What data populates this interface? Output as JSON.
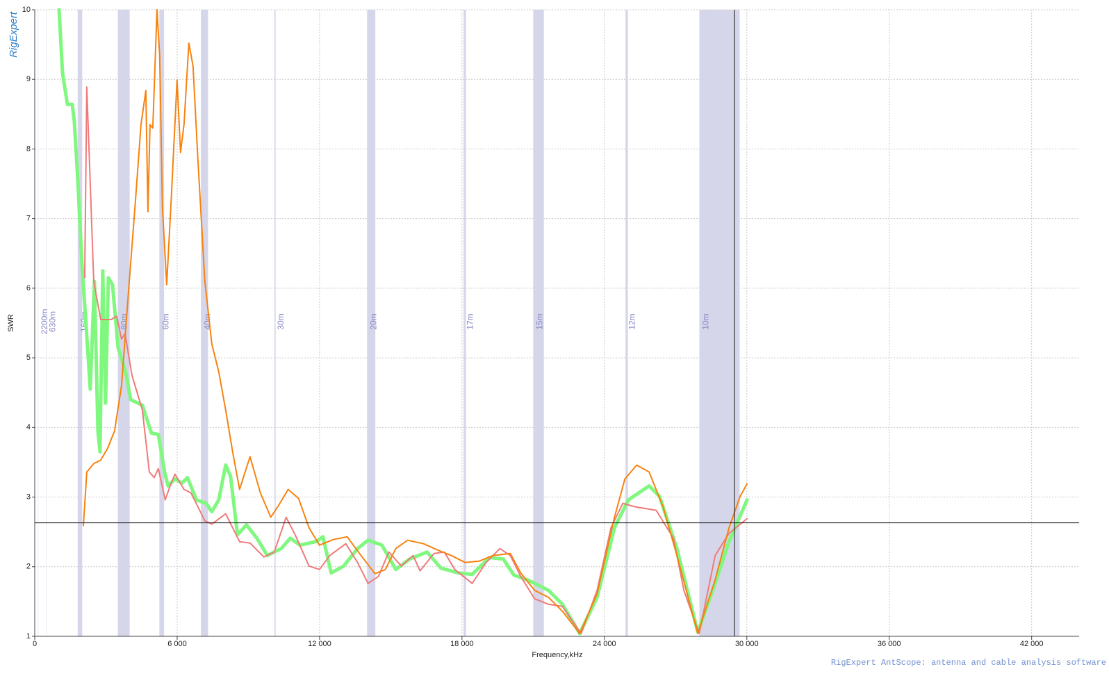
{
  "chart_data": {
    "type": "line",
    "logo": "RigExpert",
    "x_label": "Frequency,kHz",
    "y_label": "SWR",
    "footer": "RigExpert AntScope: antenna and cable analysis software",
    "xlim": [
      0,
      44000
    ],
    "ylim": [
      1,
      10
    ],
    "xticks": [
      0,
      {
        "value": 6000,
        "label": "6 000"
      },
      {
        "value": 12000,
        "label": "12 000"
      },
      {
        "value": 18000,
        "label": "18 000"
      },
      {
        "value": 24000,
        "label": "24 000"
      },
      {
        "value": 30000,
        "label": "30 000"
      },
      {
        "value": 36000,
        "label": "36 000"
      },
      {
        "value": 42000,
        "label": "42 000"
      }
    ],
    "yticks": [
      1,
      2,
      3,
      4,
      5,
      6,
      7,
      8,
      9,
      10
    ],
    "grid": true,
    "band_color": "#d6d6ea",
    "bands": [
      {
        "label": "2200m",
        "start": 135.7,
        "end": 137.8
      },
      {
        "label": "630m",
        "start": 472,
        "end": 479
      },
      {
        "label": "160m",
        "start": 1810,
        "end": 2000
      },
      {
        "label": "80m",
        "start": 3500,
        "end": 4000
      },
      {
        "label": "60m",
        "start": 5250,
        "end": 5450
      },
      {
        "label": "40m",
        "start": 7000,
        "end": 7300
      },
      {
        "label": "30m",
        "start": 10100,
        "end": 10150
      },
      {
        "label": "20m",
        "start": 14000,
        "end": 14350
      },
      {
        "label": "17m",
        "start": 18068,
        "end": 18168
      },
      {
        "label": "15m",
        "start": 21000,
        "end": 21450
      },
      {
        "label": "12m",
        "start": 24890,
        "end": 24990
      },
      {
        "label": "10m",
        "start": 28000,
        "end": 29700
      }
    ],
    "cursor": {
      "x": 29480,
      "y": 2.63
    },
    "series": [
      {
        "color": "#80f880",
        "width": 5,
        "x": [
          1024,
          1170,
          1375,
          1580,
          1667,
          1814,
          1989,
          2165,
          2340,
          2516,
          2662,
          2750,
          2867,
          2984,
          3101,
          3276,
          3510,
          3861,
          4037,
          4534,
          4914,
          5207,
          5470,
          5616,
          5909,
          6201,
          6435,
          6815,
          7225,
          7459,
          7751,
          8044,
          8249,
          8541,
          8921,
          9360,
          9799,
          10384,
          10764,
          11174,
          11846,
          12139,
          12490,
          13016,
          13601,
          14040,
          14625,
          15210,
          15795,
          16526,
          17111,
          17843,
          18428,
          19159,
          19744,
          20183,
          20768,
          21645,
          22230,
          22961,
          23693,
          24424,
          25009,
          25886,
          26325,
          27056,
          27934,
          28665,
          29250,
          30011
        ],
        "values": [
          10,
          9.09,
          8.64,
          8.64,
          8.4,
          7.55,
          6.35,
          5.45,
          4.55,
          6.1,
          3.95,
          3.65,
          6.25,
          4.35,
          6.15,
          6.05,
          5.15,
          4.75,
          4.4,
          4.32,
          3.92,
          3.9,
          3.36,
          3.16,
          3.26,
          3.2,
          3.28,
          2.96,
          2.91,
          2.79,
          2.96,
          3.46,
          3.3,
          2.46,
          2.6,
          2.41,
          2.16,
          2.26,
          2.41,
          2.31,
          2.36,
          2.43,
          1.91,
          2.01,
          2.26,
          2.38,
          2.31,
          1.96,
          2.11,
          2.21,
          1.98,
          1.91,
          1.89,
          2.13,
          2.11,
          1.88,
          1.81,
          1.66,
          1.46,
          1.04,
          1.56,
          2.56,
          2.96,
          3.16,
          3.01,
          2.26,
          1.06,
          1.76,
          2.36,
          2.96
        ]
      },
      {
        "color": "#f07a7a",
        "width": 2,
        "x": [
          2106,
          2194,
          2486,
          2779,
          3218,
          3452,
          3656,
          3803,
          4095,
          4534,
          4826,
          5031,
          5207,
          5499,
          5704,
          5909,
          6289,
          6581,
          7166,
          7459,
          8044,
          8629,
          9068,
          9653,
          10091,
          10589,
          10969,
          11554,
          11993,
          12431,
          13104,
          13601,
          14040,
          14479,
          14918,
          15444,
          15941,
          16234,
          16819,
          17258,
          17696,
          18428,
          19013,
          19598,
          20036,
          20475,
          21060,
          21645,
          22230,
          23020,
          23693,
          24278,
          24775,
          25301,
          26179,
          26910,
          27349,
          27992,
          28665,
          29250,
          30011
        ],
        "values": [
          6.15,
          8.89,
          6.1,
          5.55,
          5.55,
          5.6,
          5.27,
          5.35,
          4.75,
          4.25,
          3.36,
          3.28,
          3.41,
          2.96,
          3.16,
          3.33,
          3.11,
          3.06,
          2.66,
          2.61,
          2.76,
          2.36,
          2.34,
          2.14,
          2.21,
          2.71,
          2.46,
          2.01,
          1.96,
          2.16,
          2.33,
          2.06,
          1.76,
          1.86,
          2.21,
          2.01,
          2.16,
          1.94,
          2.19,
          2.21,
          1.96,
          1.76,
          2.06,
          2.26,
          2.16,
          1.86,
          1.54,
          1.46,
          1.43,
          1.04,
          1.66,
          2.56,
          2.91,
          2.86,
          2.81,
          2.41,
          1.66,
          1.04,
          2.16,
          2.48,
          2.69
        ]
      },
      {
        "color": "#f7820f",
        "width": 2,
        "x": [
          2048,
          2194,
          2486,
          2779,
          3071,
          3364,
          3656,
          3949,
          4241,
          4475,
          4680,
          4768,
          4856,
          4973,
          5148,
          5265,
          5382,
          5558,
          5762,
          5996,
          6143,
          6289,
          6494,
          6669,
          6874,
          7166,
          7459,
          7751,
          8044,
          8336,
          8629,
          9068,
          9506,
          9945,
          10238,
          10676,
          11115,
          11554,
          11993,
          12578,
          13163,
          13748,
          14333,
          14771,
          15210,
          15707,
          16380,
          16965,
          17550,
          18135,
          18720,
          19305,
          20036,
          20475,
          21060,
          21645,
          22230,
          22961,
          23693,
          24424,
          24863,
          25360,
          25886,
          26471,
          27056,
          27934,
          28665,
          29250,
          29718,
          30011
        ],
        "values": [
          2.59,
          3.36,
          3.48,
          3.53,
          3.7,
          3.95,
          4.6,
          5.95,
          7.25,
          8.35,
          8.84,
          7.1,
          8.35,
          8.3,
          10,
          9.34,
          7.15,
          6.05,
          7.35,
          8.99,
          7.95,
          8.35,
          9.52,
          9.19,
          7.85,
          6.1,
          5.2,
          4.8,
          4.25,
          3.65,
          3.11,
          3.58,
          3.06,
          2.71,
          2.86,
          3.11,
          2.98,
          2.56,
          2.31,
          2.39,
          2.43,
          2.16,
          1.9,
          1.96,
          2.26,
          2.38,
          2.33,
          2.24,
          2.16,
          2.06,
          2.08,
          2.16,
          2.19,
          1.91,
          1.66,
          1.56,
          1.36,
          1.04,
          1.61,
          2.71,
          3.26,
          3.46,
          3.36,
          2.86,
          2.16,
          1.04,
          1.81,
          2.56,
          3.01,
          3.19
        ]
      }
    ]
  }
}
